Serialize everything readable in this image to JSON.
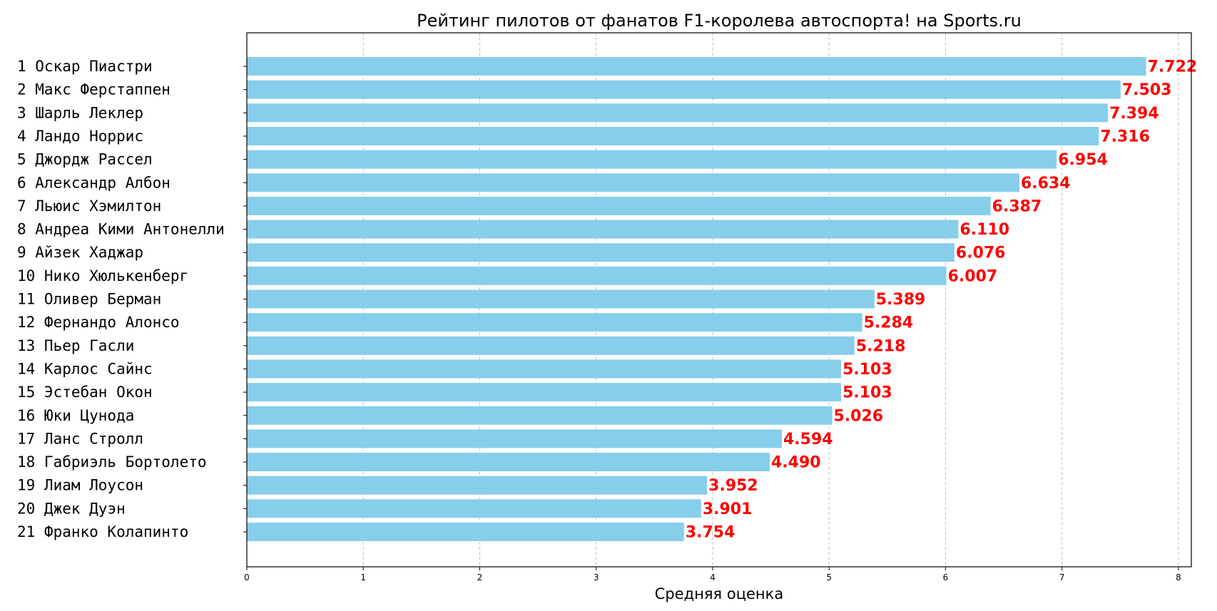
{
  "chart_data": {
    "type": "bar",
    "orientation": "horizontal",
    "title": "Рейтинг пилотов от фанатов F1-королева автоспорта! на Sports.ru",
    "xlabel": "Средняя оценка",
    "ylabel": "",
    "xlim": [
      0,
      8.12
    ],
    "xticks": [
      0,
      1,
      2,
      3,
      4,
      5,
      6,
      7,
      8
    ],
    "grid": "x, dashed",
    "bar_color": "#87ceeb",
    "label_color": "#ff0000",
    "categories": [
      "1 Оскар Пиастри",
      "2 Макс Ферстаппен",
      "3 Шарль Леклер",
      "4 Ландо Норрис",
      "5 Джордж Рассел",
      "6 Александр Албон",
      "7 Льюис Хэмилтон",
      "8 Андреа Кими Антонелли",
      "9 Айзек Хаджар",
      "10 Нико Хюлькенберг",
      "11 Оливер Берман",
      "12 Фернандо Алонсо",
      "13 Пьер Гасли",
      "14 Карлос Сайнс",
      "15 Эстебан Окон",
      "16 Юки Цунода",
      "17 Ланс Стролл",
      "18 Габриэль Бортолето",
      "19 Лиам Лоусон",
      "20 Джек Дуэн",
      "21 Франко Колапинто"
    ],
    "values": [
      7.722,
      7.503,
      7.394,
      7.316,
      6.954,
      6.634,
      6.387,
      6.11,
      6.076,
      6.007,
      5.389,
      5.284,
      5.218,
      5.103,
      5.103,
      5.026,
      4.594,
      4.49,
      3.952,
      3.901,
      3.754
    ],
    "value_labels": [
      "7.722",
      "7.503",
      "7.394",
      "7.316",
      "6.954",
      "6.634",
      "6.387",
      "6.110",
      "6.076",
      "6.007",
      "5.389",
      "5.284",
      "5.218",
      "5.103",
      "5.103",
      "5.026",
      "4.594",
      "4.490",
      "3.952",
      "3.901",
      "3.754"
    ]
  }
}
